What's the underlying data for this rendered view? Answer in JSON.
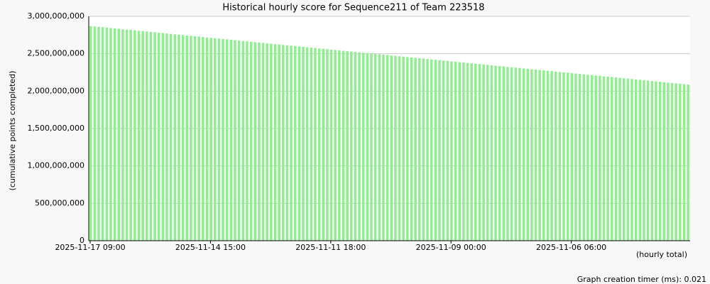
{
  "chart_data": {
    "type": "bar",
    "title": "Historical hourly score for Sequence211 of Team 223518",
    "y_label": "(cumulative points completed)",
    "x_label": "(hourly total)",
    "footer": "Graph creation timer (ms): 0.021",
    "color": "#90ee90",
    "grid": true,
    "ylim": [
      0,
      3000000000
    ],
    "yticks": [
      0,
      {
        "value": 500000000,
        "label": "500,000,000"
      },
      {
        "value": 1000000000,
        "label": "1,000,000,000"
      },
      {
        "value": 1500000000,
        "label": "1,500,000,000"
      },
      {
        "value": 2000000000,
        "label": "2,000,000,000"
      },
      {
        "value": 2500000000,
        "label": "2,500,000,000"
      },
      {
        "value": 3000000000,
        "label": "3,000,000,000"
      }
    ],
    "categories": [
      "2025-11-17 09:00",
      null,
      null,
      null,
      null,
      null,
      null,
      null,
      null,
      null,
      null,
      null,
      null,
      null,
      null,
      null,
      null,
      null,
      null,
      null,
      null,
      null,
      null,
      null,
      null,
      null,
      null,
      null,
      null,
      null,
      "2025-11-14 15:00",
      null,
      null,
      null,
      null,
      null,
      null,
      null,
      null,
      null,
      null,
      null,
      null,
      null,
      null,
      null,
      null,
      null,
      null,
      null,
      null,
      null,
      null,
      null,
      null,
      null,
      null,
      null,
      null,
      null,
      "2025-11-11 18:00",
      null,
      null,
      null,
      null,
      null,
      null,
      null,
      null,
      null,
      null,
      null,
      null,
      null,
      null,
      null,
      null,
      null,
      null,
      null,
      null,
      null,
      null,
      null,
      null,
      null,
      null,
      null,
      null,
      null,
      "2025-11-09 00:00",
      null,
      null,
      null,
      null,
      null,
      null,
      null,
      null,
      null,
      null,
      null,
      null,
      null,
      null,
      null,
      null,
      null,
      null,
      null,
      null,
      null,
      null,
      null,
      null,
      null,
      null,
      null,
      null,
      null,
      "2025-11-06 06:00",
      null,
      null,
      null,
      null,
      null,
      null,
      null,
      null,
      null,
      null,
      null,
      null,
      null,
      null,
      null,
      null,
      null,
      null,
      null,
      null,
      null,
      null,
      null,
      null,
      null,
      null,
      null,
      null,
      null
    ],
    "values": [
      2870000000,
      2865000000,
      2860000000,
      2855000000,
      2849000000,
      2844000000,
      2839000000,
      2834000000,
      2828000000,
      2823000000,
      2818000000,
      2813000000,
      2807000000,
      2802000000,
      2797000000,
      2792000000,
      2786000000,
      2781000000,
      2776000000,
      2771000000,
      2765000000,
      2760000000,
      2755000000,
      2750000000,
      2744000000,
      2739000000,
      2734000000,
      2729000000,
      2723000000,
      2718000000,
      2713000000,
      2708000000,
      2702000000,
      2697000000,
      2692000000,
      2687000000,
      2681000000,
      2676000000,
      2671000000,
      2666000000,
      2660000000,
      2655000000,
      2650000000,
      2645000000,
      2639000000,
      2634000000,
      2629000000,
      2624000000,
      2618000000,
      2613000000,
      2608000000,
      2603000000,
      2597000000,
      2592000000,
      2587000000,
      2582000000,
      2576000000,
      2571000000,
      2566000000,
      2561000000,
      2555000000,
      2550000000,
      2545000000,
      2540000000,
      2534000000,
      2529000000,
      2524000000,
      2519000000,
      2513000000,
      2508000000,
      2503000000,
      2498000000,
      2492000000,
      2487000000,
      2482000000,
      2477000000,
      2471000000,
      2466000000,
      2461000000,
      2456000000,
      2450000000,
      2445000000,
      2440000000,
      2435000000,
      2429000000,
      2424000000,
      2419000000,
      2414000000,
      2408000000,
      2403000000,
      2398000000,
      2393000000,
      2387000000,
      2382000000,
      2377000000,
      2372000000,
      2366000000,
      2361000000,
      2356000000,
      2351000000,
      2345000000,
      2340000000,
      2335000000,
      2330000000,
      2324000000,
      2319000000,
      2314000000,
      2309000000,
      2303000000,
      2298000000,
      2293000000,
      2288000000,
      2282000000,
      2277000000,
      2272000000,
      2267000000,
      2261000000,
      2256000000,
      2251000000,
      2246000000,
      2240000000,
      2235000000,
      2230000000,
      2225000000,
      2219000000,
      2214000000,
      2209000000,
      2204000000,
      2198000000,
      2193000000,
      2188000000,
      2183000000,
      2177000000,
      2172000000,
      2167000000,
      2162000000,
      2156000000,
      2151000000,
      2146000000,
      2141000000,
      2135000000,
      2130000000,
      2125000000,
      2120000000,
      2114000000,
      2109000000,
      2104000000,
      2099000000,
      2093000000,
      2088000000
    ]
  }
}
